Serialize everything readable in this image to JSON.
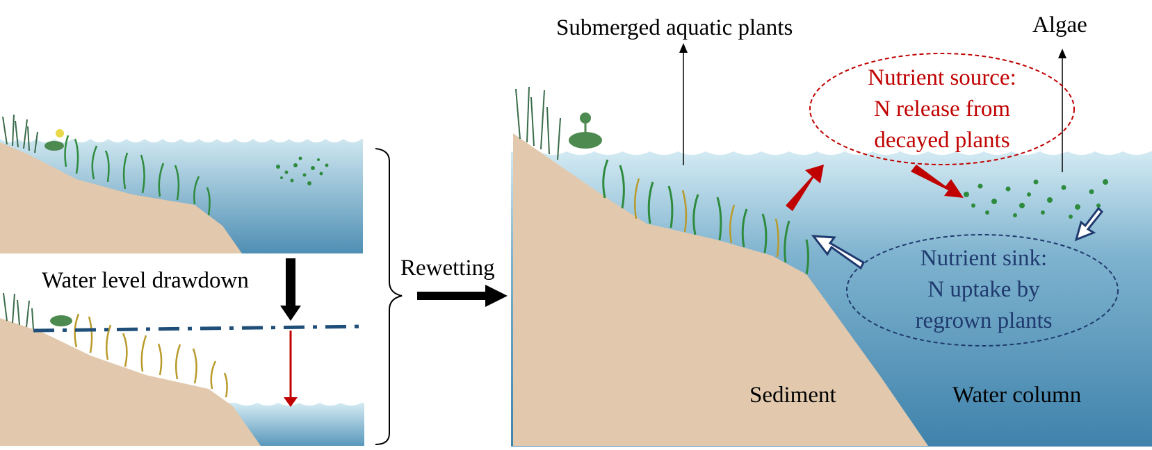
{
  "labels": {
    "drawdown": "Water level drawdown",
    "rewetting": "Rewetting",
    "submerged": "Submerged aquatic plants",
    "algae": "Algae",
    "source_line1": "Nutrient source:",
    "source_line2": "N release from",
    "source_line3": "decayed plants",
    "sink_line1": "Nutrient sink:",
    "sink_line2": "N uptake by",
    "sink_line3": "regrown plants",
    "sediment": "Sediment",
    "water_column": "Water column"
  },
  "colors": {
    "sediment": "#e2c9ae",
    "water_top": "#cde6ef",
    "water_bottom": "#4f8fb4",
    "live_plant": "#2e8b3e",
    "dead_plant": "#b89a2a",
    "release_arrow": "#c00000",
    "uptake_arrow": "#1f3a6e",
    "level_line": "#1f4e79"
  }
}
